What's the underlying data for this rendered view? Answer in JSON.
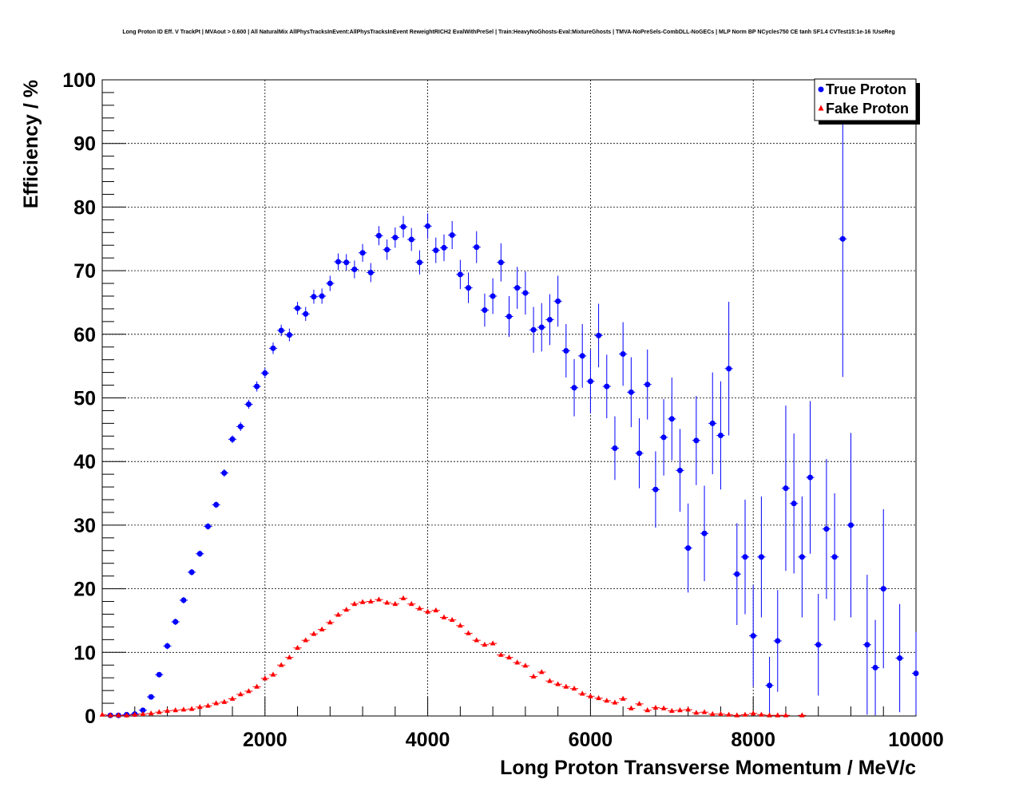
{
  "chart_data": {
    "type": "scatter",
    "title": "Long Proton ID Eff. V TrackPt | MVAout > 0.600 | All NaturalMix AllPhysTracksInEvent:AllPhysTracksInEvent ReweightRICH2 EvalWithPreSel | Train:HeavyNoGhosts-Eval:MixtureGhosts | TMVA-NoPreSels-CombDLL-NoGECs | MLP Norm BP NCycles750 CE tanh SF1.4 CVTest15:1e-16 !UseReg",
    "xlabel": "Long Proton Transverse Momentum / MeV/c",
    "ylabel": "Efficiency / %",
    "xlim": [
      0,
      10000
    ],
    "ylim": [
      0,
      100
    ],
    "xticks": [
      2000,
      4000,
      6000,
      8000,
      10000
    ],
    "yticks": [
      0,
      10,
      20,
      30,
      40,
      50,
      60,
      70,
      80,
      90,
      100
    ],
    "grid": true,
    "legend_position": "top-right",
    "series": [
      {
        "name": "True Proton",
        "color": "#0000ff",
        "marker": "circle",
        "points": [
          [
            100,
            0.1,
            0.1
          ],
          [
            200,
            0.1,
            0.1
          ],
          [
            300,
            0.2,
            0.1
          ],
          [
            400,
            0.3,
            0.1
          ],
          [
            500,
            0.9,
            0.2
          ],
          [
            600,
            3.0,
            0.3
          ],
          [
            700,
            6.5,
            0.4
          ],
          [
            800,
            11.0,
            0.5
          ],
          [
            900,
            14.8,
            0.5
          ],
          [
            1000,
            18.2,
            0.5
          ],
          [
            1100,
            22.6,
            0.5
          ],
          [
            1200,
            25.5,
            0.5
          ],
          [
            1300,
            29.8,
            0.5
          ],
          [
            1400,
            33.2,
            0.5
          ],
          [
            1500,
            38.2,
            0.6
          ],
          [
            1600,
            43.5,
            0.6
          ],
          [
            1700,
            45.5,
            0.7
          ],
          [
            1800,
            49.0,
            0.7
          ],
          [
            1900,
            51.8,
            0.8
          ],
          [
            2000,
            53.9,
            0.8
          ],
          [
            2100,
            57.8,
            0.9
          ],
          [
            2200,
            60.6,
            0.9
          ],
          [
            2300,
            59.9,
            1.0
          ],
          [
            2400,
            64.1,
            1.0
          ],
          [
            2500,
            63.2,
            1.1
          ],
          [
            2600,
            65.9,
            1.1
          ],
          [
            2700,
            66.0,
            1.2
          ],
          [
            2800,
            68.0,
            1.2
          ],
          [
            2900,
            71.4,
            1.3
          ],
          [
            3000,
            71.3,
            1.3
          ],
          [
            3100,
            70.2,
            1.4
          ],
          [
            3200,
            72.8,
            1.4
          ],
          [
            3300,
            69.7,
            1.5
          ],
          [
            3400,
            75.5,
            1.5
          ],
          [
            3500,
            73.3,
            1.6
          ],
          [
            3600,
            75.2,
            1.6
          ],
          [
            3700,
            76.9,
            1.7
          ],
          [
            3800,
            74.9,
            1.8
          ],
          [
            3900,
            71.3,
            1.9
          ],
          [
            4000,
            77.0,
            2.0
          ],
          [
            4100,
            73.2,
            2.0
          ],
          [
            4200,
            73.6,
            2.1
          ],
          [
            4300,
            75.6,
            2.2
          ],
          [
            4400,
            69.4,
            2.3
          ],
          [
            4500,
            67.3,
            2.4
          ],
          [
            4600,
            73.7,
            2.5
          ],
          [
            4700,
            63.8,
            2.6
          ],
          [
            4800,
            66.0,
            2.8
          ],
          [
            4900,
            71.3,
            3.0
          ],
          [
            5000,
            62.8,
            3.2
          ],
          [
            5100,
            67.3,
            3.3
          ],
          [
            5200,
            66.5,
            3.4
          ],
          [
            5300,
            60.7,
            3.6
          ],
          [
            5400,
            61.1,
            3.8
          ],
          [
            5500,
            62.3,
            4.0
          ],
          [
            5600,
            65.2,
            4.0
          ],
          [
            5700,
            57.4,
            4.2
          ],
          [
            5800,
            51.6,
            4.5
          ],
          [
            5900,
            56.6,
            5.0
          ],
          [
            6000,
            52.6,
            5.0
          ],
          [
            6100,
            59.8,
            5.0
          ],
          [
            6200,
            51.8,
            5.0
          ],
          [
            6300,
            42.1,
            5.0
          ],
          [
            6400,
            56.9,
            5.0
          ],
          [
            6500,
            50.9,
            5.5
          ],
          [
            6600,
            41.3,
            5.5
          ],
          [
            6700,
            52.1,
            5.5
          ],
          [
            6800,
            35.6,
            6.0
          ],
          [
            6900,
            43.8,
            6.0
          ],
          [
            7000,
            46.7,
            6.5
          ],
          [
            7100,
            38.6,
            6.5
          ],
          [
            7200,
            26.4,
            7.0
          ],
          [
            7300,
            43.3,
            7.0
          ],
          [
            7400,
            28.7,
            7.5
          ],
          [
            7500,
            46.0,
            8.0
          ],
          [
            7600,
            44.1,
            8.5
          ],
          [
            7700,
            54.6,
            10.5
          ],
          [
            7800,
            22.3,
            8.0
          ],
          [
            7900,
            25.0,
            9.0
          ],
          [
            8000,
            12.6,
            8.0
          ],
          [
            8100,
            25.0,
            9.5
          ],
          [
            8200,
            4.8,
            4.5
          ],
          [
            8300,
            11.8,
            8.0
          ],
          [
            8400,
            35.8,
            13.0
          ],
          [
            8500,
            33.4,
            11.0
          ],
          [
            8600,
            25.0,
            9.5
          ],
          [
            8700,
            37.5,
            12.0
          ],
          [
            8800,
            11.2,
            8.0
          ],
          [
            8900,
            29.4,
            11.0
          ],
          [
            9000,
            25.0,
            10.0
          ],
          [
            9100,
            75.0,
            21.7
          ],
          [
            9200,
            30.0,
            14.5
          ],
          [
            9400,
            11.2,
            11.0
          ],
          [
            9500,
            7.6,
            7.5
          ],
          [
            9600,
            20.0,
            12.5
          ],
          [
            9800,
            9.1,
            8.5
          ],
          [
            10000,
            6.7,
            6.5
          ]
        ]
      },
      {
        "name": "Fake Proton",
        "color": "#ff0000",
        "marker": "triangle",
        "points": [
          [
            0,
            0.2
          ],
          [
            100,
            0.1
          ],
          [
            200,
            0.1
          ],
          [
            300,
            0.1
          ],
          [
            400,
            0.2
          ],
          [
            500,
            0.3
          ],
          [
            600,
            0.4
          ],
          [
            700,
            0.6
          ],
          [
            800,
            0.8
          ],
          [
            900,
            0.9
          ],
          [
            1000,
            1.0
          ],
          [
            1100,
            1.1
          ],
          [
            1200,
            1.4
          ],
          [
            1300,
            1.6
          ],
          [
            1400,
            2.0
          ],
          [
            1500,
            2.2
          ],
          [
            1600,
            2.7
          ],
          [
            1700,
            3.4
          ],
          [
            1800,
            3.9
          ],
          [
            1900,
            4.6
          ],
          [
            2000,
            5.9
          ],
          [
            2100,
            6.5
          ],
          [
            2200,
            8.0
          ],
          [
            2300,
            9.2
          ],
          [
            2400,
            10.7
          ],
          [
            2500,
            11.9
          ],
          [
            2600,
            12.9
          ],
          [
            2700,
            13.6
          ],
          [
            2800,
            14.7
          ],
          [
            2900,
            15.9
          ],
          [
            3000,
            16.7
          ],
          [
            3100,
            17.6
          ],
          [
            3200,
            17.9
          ],
          [
            3300,
            18.0
          ],
          [
            3400,
            18.3
          ],
          [
            3500,
            17.8
          ],
          [
            3600,
            17.6
          ],
          [
            3700,
            18.5
          ],
          [
            3800,
            17.6
          ],
          [
            3900,
            16.9
          ],
          [
            4000,
            16.4
          ],
          [
            4100,
            16.6
          ],
          [
            4200,
            15.5
          ],
          [
            4300,
            15.1
          ],
          [
            4400,
            14.2
          ],
          [
            4500,
            13.0
          ],
          [
            4600,
            11.9
          ],
          [
            4700,
            11.2
          ],
          [
            4800,
            11.4
          ],
          [
            4900,
            9.6
          ],
          [
            5000,
            9.2
          ],
          [
            5100,
            8.4
          ],
          [
            5200,
            7.9
          ],
          [
            5300,
            6.2
          ],
          [
            5400,
            6.9
          ],
          [
            5500,
            5.5
          ],
          [
            5600,
            5.0
          ],
          [
            5700,
            4.6
          ],
          [
            5800,
            4.3
          ],
          [
            5900,
            3.5
          ],
          [
            6000,
            3.1
          ],
          [
            6100,
            2.8
          ],
          [
            6200,
            2.4
          ],
          [
            6300,
            2.1
          ],
          [
            6400,
            2.7
          ],
          [
            6500,
            1.2
          ],
          [
            6600,
            1.9
          ],
          [
            6700,
            0.9
          ],
          [
            6800,
            1.3
          ],
          [
            6900,
            1.2
          ],
          [
            7000,
            0.8
          ],
          [
            7100,
            0.9
          ],
          [
            7200,
            1.0
          ],
          [
            7300,
            0.5
          ],
          [
            7400,
            0.6
          ],
          [
            7500,
            0.3
          ],
          [
            7600,
            0.3
          ],
          [
            7700,
            0.2
          ],
          [
            7800,
            0.1
          ],
          [
            7900,
            0.2
          ],
          [
            8000,
            0.4
          ],
          [
            8100,
            0.2
          ],
          [
            8200,
            0.1
          ],
          [
            8300,
            0.1
          ],
          [
            8400,
            0.1
          ],
          [
            8600,
            0.1
          ]
        ]
      }
    ]
  }
}
